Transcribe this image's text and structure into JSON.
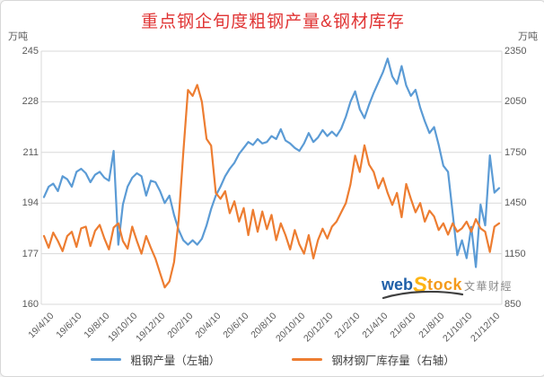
{
  "title": {
    "text": "重点钢企旬度粗钢产量&钢材库存",
    "color": "#e03333"
  },
  "axes": {
    "left": {
      "unit": "万吨",
      "ticks": [
        245,
        228,
        211,
        194,
        177,
        160
      ]
    },
    "right": {
      "unit": "万吨",
      "ticks": [
        2350,
        2050,
        1750,
        1450,
        1150,
        850
      ]
    },
    "x": {
      "tick_every": 6,
      "tick_labels": [
        "19/4/10",
        "19/6/10",
        "19/8/10",
        "19/10/10",
        "19/12/10",
        "20/2/10",
        "20/4/10",
        "20/6/10",
        "20/8/10",
        "20/10/10",
        "20/12/10",
        "21/2/10",
        "21/4/10",
        "21/6/10",
        "21/8/10",
        "21/10/10",
        "21/12/10"
      ]
    }
  },
  "legend": [
    {
      "label": "粗钢产量（左轴）",
      "color": "#5b9bd5"
    },
    {
      "label": "钢材钢厂库存量（右轴）",
      "color": "#ed7d31"
    }
  ],
  "watermark": {
    "web": "web",
    "s": "S",
    "tock": "tock",
    "cjk": "文華财經",
    "web_color": "#1f5fa8",
    "s_color": "#fdb515",
    "tock_color": "#f49a1c",
    "cjk_color": "#8c8c8c",
    "swoosh_color": "#404040"
  },
  "style": {
    "grid_color": "#d9d9d9",
    "tick_color": "#595959",
    "background": "#ffffff"
  },
  "chart_data": {
    "type": "line",
    "title": "重点钢企旬度粗钢产量&钢材库存",
    "ylabel_left": "万吨",
    "ylabel_right": "万吨",
    "ylim_left": [
      160,
      245
    ],
    "ylim_right": [
      850,
      2350
    ],
    "grid": true,
    "legend_position": "bottom",
    "x": [
      "19/4/10",
      "19/4/20",
      "19/4/30",
      "19/5/10",
      "19/5/20",
      "19/5/30",
      "19/6/10",
      "19/6/20",
      "19/6/30",
      "19/7/10",
      "19/7/20",
      "19/7/30",
      "19/8/10",
      "19/8/20",
      "19/8/30",
      "19/9/10",
      "19/9/20",
      "19/9/30",
      "19/10/10",
      "19/10/20",
      "19/10/30",
      "19/11/10",
      "19/11/20",
      "19/11/30",
      "19/12/10",
      "19/12/20",
      "19/12/30",
      "20/1/10",
      "20/1/20",
      "20/1/30",
      "20/2/10",
      "20/2/20",
      "20/2/30",
      "20/3/10",
      "20/3/20",
      "20/3/30",
      "20/4/10",
      "20/4/20",
      "20/4/30",
      "20/5/10",
      "20/5/20",
      "20/5/30",
      "20/6/10",
      "20/6/20",
      "20/6/30",
      "20/7/10",
      "20/7/20",
      "20/7/30",
      "20/8/10",
      "20/8/20",
      "20/8/30",
      "20/9/10",
      "20/9/20",
      "20/9/30",
      "20/10/10",
      "20/10/20",
      "20/10/30",
      "20/11/10",
      "20/11/20",
      "20/11/30",
      "20/12/10",
      "20/12/20",
      "20/12/30",
      "21/1/10",
      "21/1/20",
      "21/1/30",
      "21/2/10",
      "21/2/20",
      "21/2/30",
      "21/3/10",
      "21/3/20",
      "21/3/30",
      "21/4/10",
      "21/4/20",
      "21/4/30",
      "21/5/10",
      "21/5/20",
      "21/5/30",
      "21/6/10",
      "21/6/20",
      "21/6/30",
      "21/7/10",
      "21/7/20",
      "21/7/30",
      "21/8/10",
      "21/8/20",
      "21/8/30",
      "21/9/10",
      "21/9/20",
      "21/9/30",
      "21/10/10",
      "21/10/20",
      "21/10/30",
      "21/11/10",
      "21/11/20",
      "21/11/30",
      "21/12/10",
      "21/12/20",
      "21/12/30"
    ],
    "series": [
      {
        "name": "粗钢产量（左轴）",
        "axis": "left",
        "color": "#5b9bd5",
        "values": [
          196,
          199.5,
          200.5,
          198,
          203,
          202,
          199.5,
          204.5,
          205.5,
          204,
          201,
          203.5,
          204.5,
          202.5,
          201.5,
          211.5,
          180,
          193.5,
          199.5,
          202.5,
          204,
          203,
          196.5,
          201.5,
          201,
          198,
          194,
          196.5,
          190,
          185,
          181.5,
          180,
          181.5,
          180,
          182,
          186.5,
          192,
          196.5,
          199.5,
          203,
          205.5,
          207.5,
          210.5,
          212.5,
          214.5,
          213.5,
          215.5,
          214,
          214.5,
          216.5,
          215.5,
          218.8,
          215,
          214,
          212.5,
          211.5,
          214,
          217.5,
          214.5,
          216,
          218.5,
          216.5,
          218,
          216.5,
          219,
          223,
          228,
          231.5,
          225.5,
          222.5,
          227,
          231,
          234.5,
          238,
          242.5,
          236.5,
          234,
          240,
          233.5,
          230,
          232,
          226,
          221.5,
          217.5,
          219.5,
          213.5,
          206.5,
          204.5,
          190.5,
          176.5,
          181.5,
          175.5,
          186,
          172.5,
          193.5,
          186.5,
          210,
          197.5,
          199
        ]
      },
      {
        "name": "钢材钢厂库存量（右轴）",
        "axis": "right",
        "color": "#ed7d31",
        "values": [
          1255,
          1185,
          1275,
          1225,
          1165,
          1255,
          1280,
          1190,
          1300,
          1310,
          1195,
          1285,
          1320,
          1240,
          1175,
          1305,
          1330,
          1225,
          1180,
          1310,
          1225,
          1150,
          1255,
          1185,
          1120,
          1035,
          950,
          985,
          1100,
          1350,
          1750,
          2120,
          2085,
          2150,
          2050,
          1830,
          1790,
          1510,
          1475,
          1520,
          1390,
          1460,
          1340,
          1420,
          1260,
          1410,
          1280,
          1400,
          1295,
          1380,
          1230,
          1330,
          1260,
          1175,
          1290,
          1205,
          1150,
          1260,
          1122,
          1230,
          1298,
          1240,
          1310,
          1340,
          1395,
          1450,
          1560,
          1731,
          1634,
          1792,
          1678,
          1634,
          1537,
          1598,
          1510,
          1439,
          1510,
          1366,
          1563,
          1475,
          1395,
          1450,
          1340,
          1405,
          1370,
          1290,
          1330,
          1263,
          1330,
          1280,
          1300,
          1340,
          1280,
          1355,
          1300,
          1280,
          1160,
          1310,
          1330
        ]
      }
    ]
  }
}
